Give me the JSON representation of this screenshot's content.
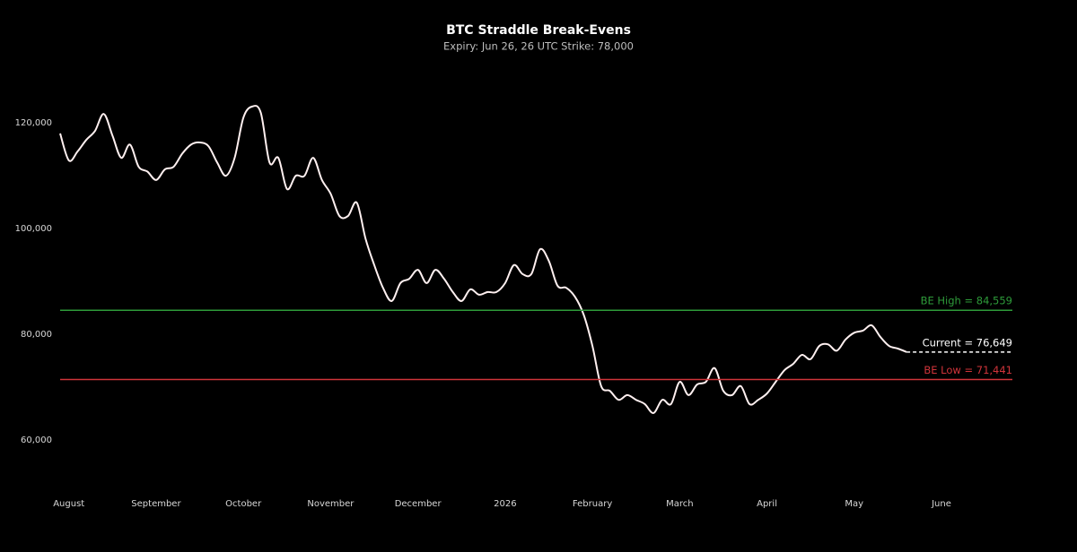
{
  "chart_data": {
    "type": "line",
    "title": "BTC Straddle Break-Evens",
    "subtitle": "Expiry: Jun 26, 26 UTC Strike: 78,000",
    "categories": [
      null,
      "August",
      null,
      null,
      null,
      null,
      null,
      null,
      null,
      null,
      null,
      "September",
      null,
      null,
      null,
      null,
      null,
      null,
      null,
      null,
      null,
      "October",
      null,
      null,
      null,
      null,
      null,
      null,
      null,
      null,
      null,
      "November",
      null,
      null,
      null,
      null,
      null,
      null,
      null,
      null,
      null,
      "December",
      null,
      null,
      null,
      null,
      null,
      null,
      null,
      null,
      null,
      "2026",
      null,
      null,
      null,
      null,
      null,
      null,
      null,
      null,
      null,
      "February",
      null,
      null,
      null,
      null,
      null,
      null,
      null,
      null,
      null,
      "March",
      null,
      null,
      null,
      null,
      null,
      null,
      null,
      null,
      null,
      "April",
      null,
      null,
      null,
      null,
      null,
      null,
      null,
      null,
      null,
      "May",
      null,
      null,
      null,
      null,
      null,
      null,
      null,
      null,
      null,
      "June"
    ],
    "series": [
      {
        "name": "BTC",
        "color": "#fff0f0",
        "values": [
          118000,
          112900,
          114600,
          116800,
          118500,
          121700,
          117600,
          113400,
          115900,
          111700,
          110800,
          109200,
          111200,
          111700,
          114200,
          115900,
          116300,
          115600,
          112500,
          110000,
          113400,
          121000,
          123100,
          121900,
          112500,
          113400,
          107500,
          110000,
          110000,
          113400,
          109200,
          106600,
          102400,
          102400,
          104900,
          98100,
          93100,
          88800,
          86300,
          89700,
          90500,
          92200,
          89700,
          92200,
          90500,
          88000,
          86300,
          88500,
          87500,
          88000,
          88000,
          89700,
          93100,
          91400,
          91400,
          96100,
          93900,
          89200,
          88800,
          87100,
          83700,
          77800,
          70200,
          69300,
          67600,
          68500,
          67600,
          66800,
          65100,
          67600,
          66800,
          71000,
          68500,
          70500,
          71000,
          73600,
          69300,
          68500,
          70200,
          66800,
          67600,
          68800,
          71000,
          73200,
          74400,
          76100,
          75300,
          77800,
          78100,
          76900,
          79000,
          80300,
          80700,
          81700,
          79500,
          77800,
          77300,
          76649,
          null,
          null,
          null,
          null
        ]
      }
    ],
    "reference_lines": [
      {
        "label": "BE High = 84,559",
        "value": 84559,
        "color": "#2e9b3a",
        "style": "solid"
      },
      {
        "label": "Current = 76,649",
        "value": 76649,
        "color": "#ffffff",
        "style": "dashed"
      },
      {
        "label": "BE Low = 71,441",
        "value": 71441,
        "color": "#d0343a",
        "style": "solid"
      }
    ],
    "ylim": [
      50000,
      128000
    ],
    "yticks": [
      {
        "value": 60000,
        "label": "60,000"
      },
      {
        "value": 80000,
        "label": "80,000"
      },
      {
        "value": 100000,
        "label": "100,000"
      },
      {
        "value": 120000,
        "label": "120,000"
      }
    ],
    "grid": false
  }
}
